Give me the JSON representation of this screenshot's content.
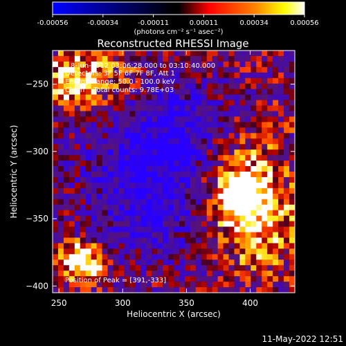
{
  "colorbar": {
    "ticks": [
      "-0.00056",
      "-0.00034",
      "-0.00011",
      "0.00011",
      "0.00034",
      "0.00056"
    ],
    "unit_label": "(photons cm⁻² s⁻¹ asec⁻²)"
  },
  "chart_data": {
    "type": "heatmap",
    "title": "Reconstructed RHESSI Image",
    "xlabel": "Heliocentric X (arcsec)",
    "ylabel": "Heliocentric Y (arcsec)",
    "xlim": [
      245,
      435
    ],
    "ylim": [
      -405,
      -225
    ],
    "x_ticks": [
      250,
      300,
      350,
      400
    ],
    "y_ticks": [
      -250,
      -300,
      -350,
      -400
    ],
    "x_tick_labels": [
      "250",
      "300",
      "350",
      "400"
    ],
    "y_tick_labels": [
      "−250",
      "−300",
      "−350",
      "−400"
    ],
    "color_range": [
      -0.00056,
      0.00056
    ],
    "peak_position": [
      391,
      -333
    ],
    "colors": {
      "low": "#0000ff",
      "mid": "#000000",
      "high": "#ffffff",
      "accent": "#ff4000"
    }
  },
  "annotations": {
    "time_range": "8-Jun-2012 03:06:28.000 to 03:10:40.000",
    "detectors": "Detectors: 3F 5F 6F 7F 8F, Att 1",
    "energy": "Energy Range: 50.0 - 100.0 keV",
    "clean": "Clean    Total counts: 9.78E+03",
    "peak_text": "Position of Peak = [391,-333]"
  },
  "footer": {
    "timestamp": "11-May-2022 12:51"
  }
}
